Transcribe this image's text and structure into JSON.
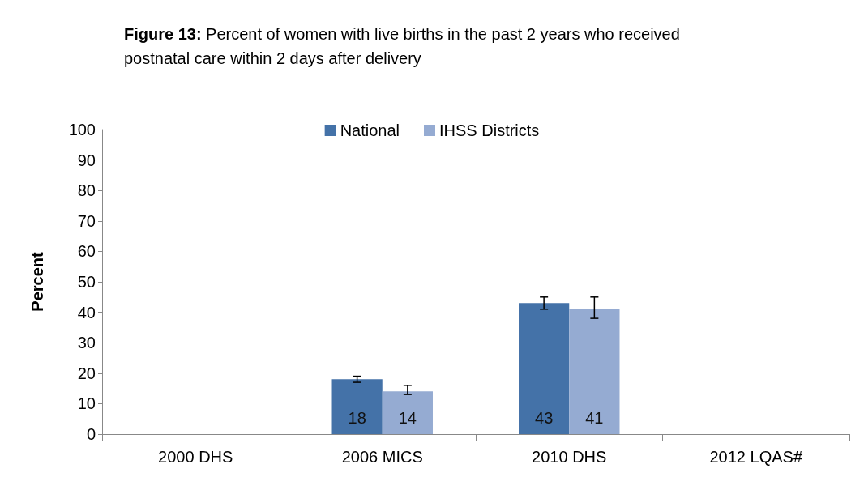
{
  "chart_data": {
    "type": "bar",
    "title": "Figure 13: Percent of women with live births in the past 2 years who received postnatal care within 2 days after delivery",
    "ylabel": "Percent",
    "categories": [
      "2000 DHS",
      "2006 MICS",
      "2010 DHS",
      "2012 LQAS#"
    ],
    "series": [
      {
        "name": "National",
        "color": "#4472a8",
        "values": [
          null,
          18,
          43,
          null
        ],
        "errors": [
          null,
          [
            17,
            19
          ],
          [
            41,
            45
          ],
          null
        ]
      },
      {
        "name": "IHSS Districts",
        "color": "#95abd2",
        "values": [
          null,
          14,
          41,
          null
        ],
        "errors": [
          null,
          [
            13,
            16
          ],
          [
            38,
            45
          ],
          null
        ]
      }
    ],
    "ylim": [
      0,
      100
    ],
    "yticks": [
      0,
      10,
      20,
      30,
      40,
      50,
      60,
      70,
      80,
      90,
      100
    ],
    "grid": false,
    "legend": "top",
    "data_labels": true
  }
}
